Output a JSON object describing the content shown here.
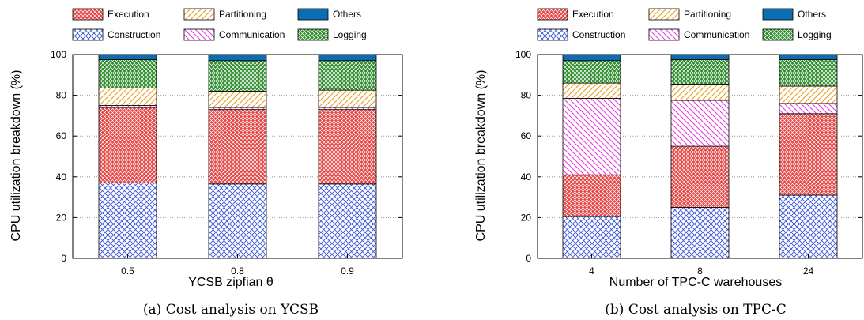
{
  "chart_data": [
    {
      "type": "bar",
      "stacked": true,
      "caption": "(a) Cost analysis on YCSB",
      "xlabel": "YCSB zipfian θ",
      "ylabel": "CPU utilization breakdown (%)",
      "ylim": [
        0,
        100
      ],
      "yticks": [
        "0",
        "20",
        "40",
        "60",
        "80",
        "100"
      ],
      "grid": "horizontal dotted",
      "legend_position": "top",
      "categories": [
        "0.5",
        "0.8",
        "0.9"
      ],
      "series": [
        {
          "name": "Construction",
          "values": [
            37,
            36.5,
            36.5
          ]
        },
        {
          "name": "Execution",
          "values": [
            37,
            36.5,
            36.5
          ]
        },
        {
          "name": "Communication",
          "values": [
            1,
            1,
            1
          ]
        },
        {
          "name": "Partitioning",
          "values": [
            8.5,
            8,
            8.5
          ]
        },
        {
          "name": "Logging",
          "values": [
            14,
            15,
            14.5
          ]
        },
        {
          "name": "Others",
          "values": [
            2.5,
            3,
            3
          ]
        }
      ]
    },
    {
      "type": "bar",
      "stacked": true,
      "caption": "(b) Cost analysis on TPC-C",
      "xlabel": "Number of TPC-C warehouses",
      "ylabel": "CPU utilization breakdown (%)",
      "ylim": [
        0,
        100
      ],
      "yticks": [
        "0",
        "20",
        "40",
        "60",
        "80",
        "100"
      ],
      "grid": "horizontal dotted",
      "legend_position": "top",
      "categories": [
        "4",
        "8",
        "24"
      ],
      "series": [
        {
          "name": "Construction",
          "values": [
            20.5,
            25,
            31
          ]
        },
        {
          "name": "Execution",
          "values": [
            20.5,
            30,
            40
          ]
        },
        {
          "name": "Communication",
          "values": [
            37.5,
            22.5,
            5
          ]
        },
        {
          "name": "Partitioning",
          "values": [
            7.5,
            8,
            8.5
          ]
        },
        {
          "name": "Logging",
          "values": [
            11,
            12,
            13
          ]
        },
        {
          "name": "Others",
          "values": [
            3,
            2.5,
            2.5
          ]
        }
      ]
    }
  ],
  "legend_order": [
    "Execution",
    "Partitioning",
    "Others",
    "Construction",
    "Communication",
    "Logging"
  ],
  "series_colors": {
    "Construction": "#3a55d6",
    "Execution": "#e03030",
    "Communication": "#e040e0",
    "Partitioning": "#e8a020",
    "Logging": "#2a8a2a",
    "Others": "#0c6eb0"
  }
}
